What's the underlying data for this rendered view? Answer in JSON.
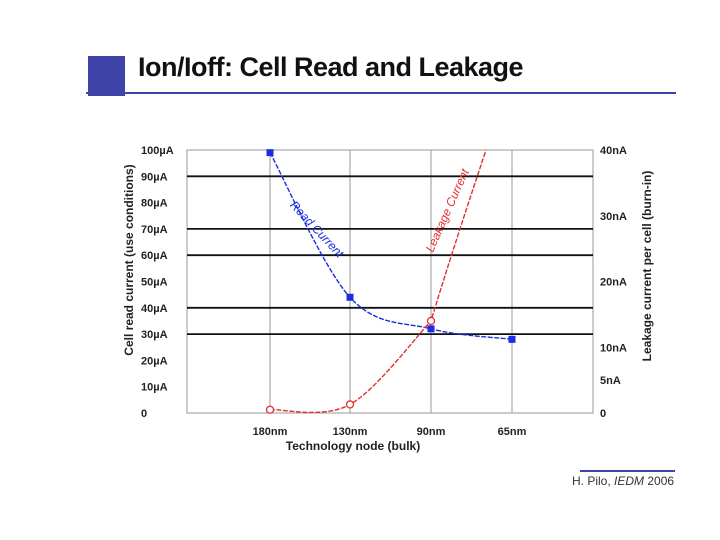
{
  "slide": {
    "title": "Ion/Ioff: Cell Read and Leakage",
    "citation_author": "H. Pilo,",
    "citation_venue": "IEDM",
    "citation_year": "2006",
    "accent_color": "#3f44a8"
  },
  "chart_data": {
    "type": "line",
    "title": "Ion/Ioff: Cell Read and Leakage",
    "xlabel": "Technology node (bulk)",
    "categories": [
      "180nm",
      "130nm",
      "90nm",
      "65nm"
    ],
    "left_axis": {
      "label": "Cell read current (use conditions)",
      "ylim": [
        0,
        100
      ],
      "ticks": [
        0,
        10,
        20,
        30,
        40,
        50,
        60,
        70,
        80,
        90,
        100
      ],
      "tick_labels": [
        "0",
        "10µA",
        "20µA",
        "30µA",
        "40µA",
        "50µA",
        "60µA",
        "70µA",
        "80µA",
        "90µA",
        "100µA"
      ]
    },
    "right_axis": {
      "label": "Leakage current per cell (burn-in)",
      "ylim": [
        0,
        40
      ],
      "ticks": [
        0,
        5,
        10,
        20,
        30,
        40
      ],
      "tick_labels": [
        "0",
        "5nA",
        "10nA",
        "20nA",
        "30nA",
        "40nA"
      ]
    },
    "grid_major_left": [
      30,
      40,
      60,
      70,
      90
    ],
    "series": [
      {
        "name": "Read Current",
        "axis": "left",
        "color": "#1a2ee0",
        "marker": "square",
        "values": [
          99,
          44,
          32,
          28
        ],
        "annotation": "Read Current"
      },
      {
        "name": "Leakage Current",
        "axis": "right",
        "color": "#e03030",
        "marker": "circle",
        "values": [
          0.5,
          1.3,
          14,
          null
        ],
        "annotation": "Leakage Current"
      }
    ]
  }
}
